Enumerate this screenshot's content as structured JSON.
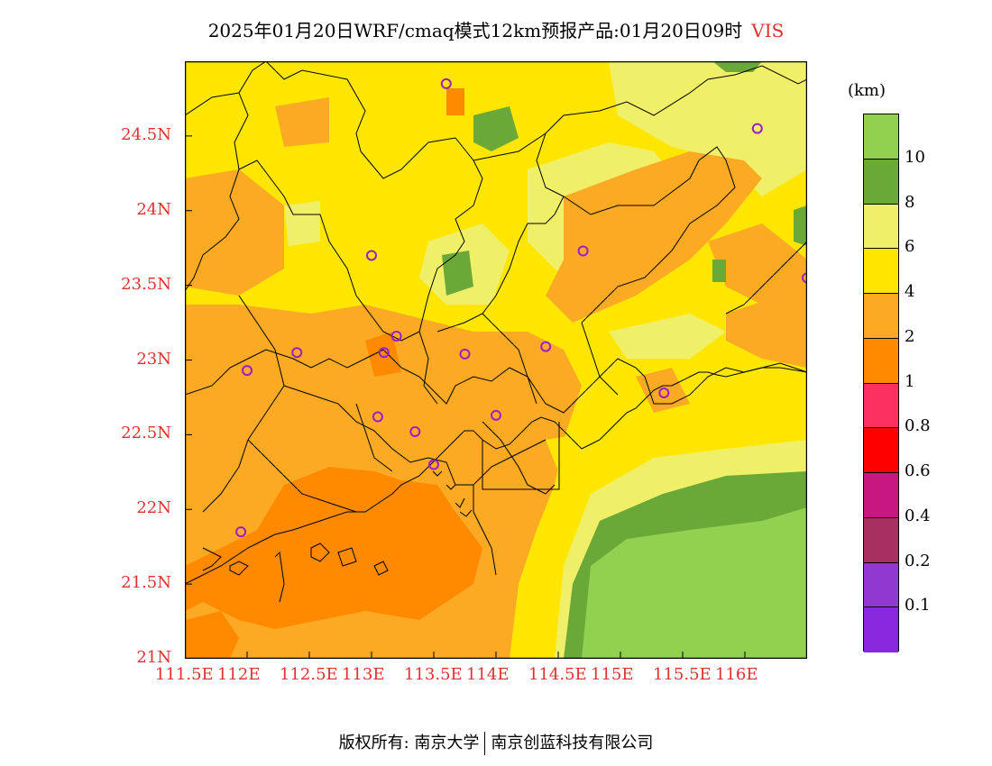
{
  "title": {
    "main": "2025年01月20日WRF/cmaq模式12km预报产品:01月20日09时",
    "variable": "VIS"
  },
  "axes": {
    "y_ticks": [
      "24.5N",
      "24N",
      "23.5N",
      "23N",
      "22.5N",
      "22N",
      "21.5N",
      "21N"
    ],
    "x_ticks": [
      "111.5E",
      "112E",
      "112.5E",
      "113E",
      "113.5E",
      "114E",
      "114.5E",
      "115E",
      "115.5E",
      "116E"
    ],
    "lat_range": [
      21,
      25
    ],
    "lon_range": [
      111.5,
      116.5
    ]
  },
  "colorbar": {
    "unit": "(km)",
    "labels": [
      "10",
      "8",
      "6",
      "4",
      "2",
      "1",
      "0.8",
      "0.6",
      "0.4",
      "0.2",
      "0.1"
    ],
    "colors": [
      "#92d050",
      "#6aa838",
      "#f0f068",
      "#ffe600",
      "#fcaa24",
      "#ff8a00",
      "#fc3060",
      "#ff0000",
      "#c81880",
      "#a83060",
      "#9038d0",
      "#8a28e0"
    ]
  },
  "footer": {
    "left": "版权所有: 南京大学",
    "right": "南京创蓝科技有限公司"
  },
  "stations": [
    {
      "lon": 113.6,
      "lat": 24.85
    },
    {
      "lon": 116.1,
      "lat": 24.55
    },
    {
      "lon": 113.0,
      "lat": 23.7
    },
    {
      "lon": 114.7,
      "lat": 23.73
    },
    {
      "lon": 116.5,
      "lat": 23.55
    },
    {
      "lon": 112.4,
      "lat": 23.05
    },
    {
      "lon": 113.1,
      "lat": 23.05
    },
    {
      "lon": 113.2,
      "lat": 23.16
    },
    {
      "lon": 113.75,
      "lat": 23.04
    },
    {
      "lon": 114.4,
      "lat": 23.09
    },
    {
      "lon": 112.0,
      "lat": 22.93
    },
    {
      "lon": 115.35,
      "lat": 22.78
    },
    {
      "lon": 113.05,
      "lat": 22.62
    },
    {
      "lon": 113.35,
      "lat": 22.52
    },
    {
      "lon": 114.0,
      "lat": 22.63
    },
    {
      "lon": 113.5,
      "lat": 22.3
    },
    {
      "lon": 111.95,
      "lat": 21.85
    }
  ]
}
